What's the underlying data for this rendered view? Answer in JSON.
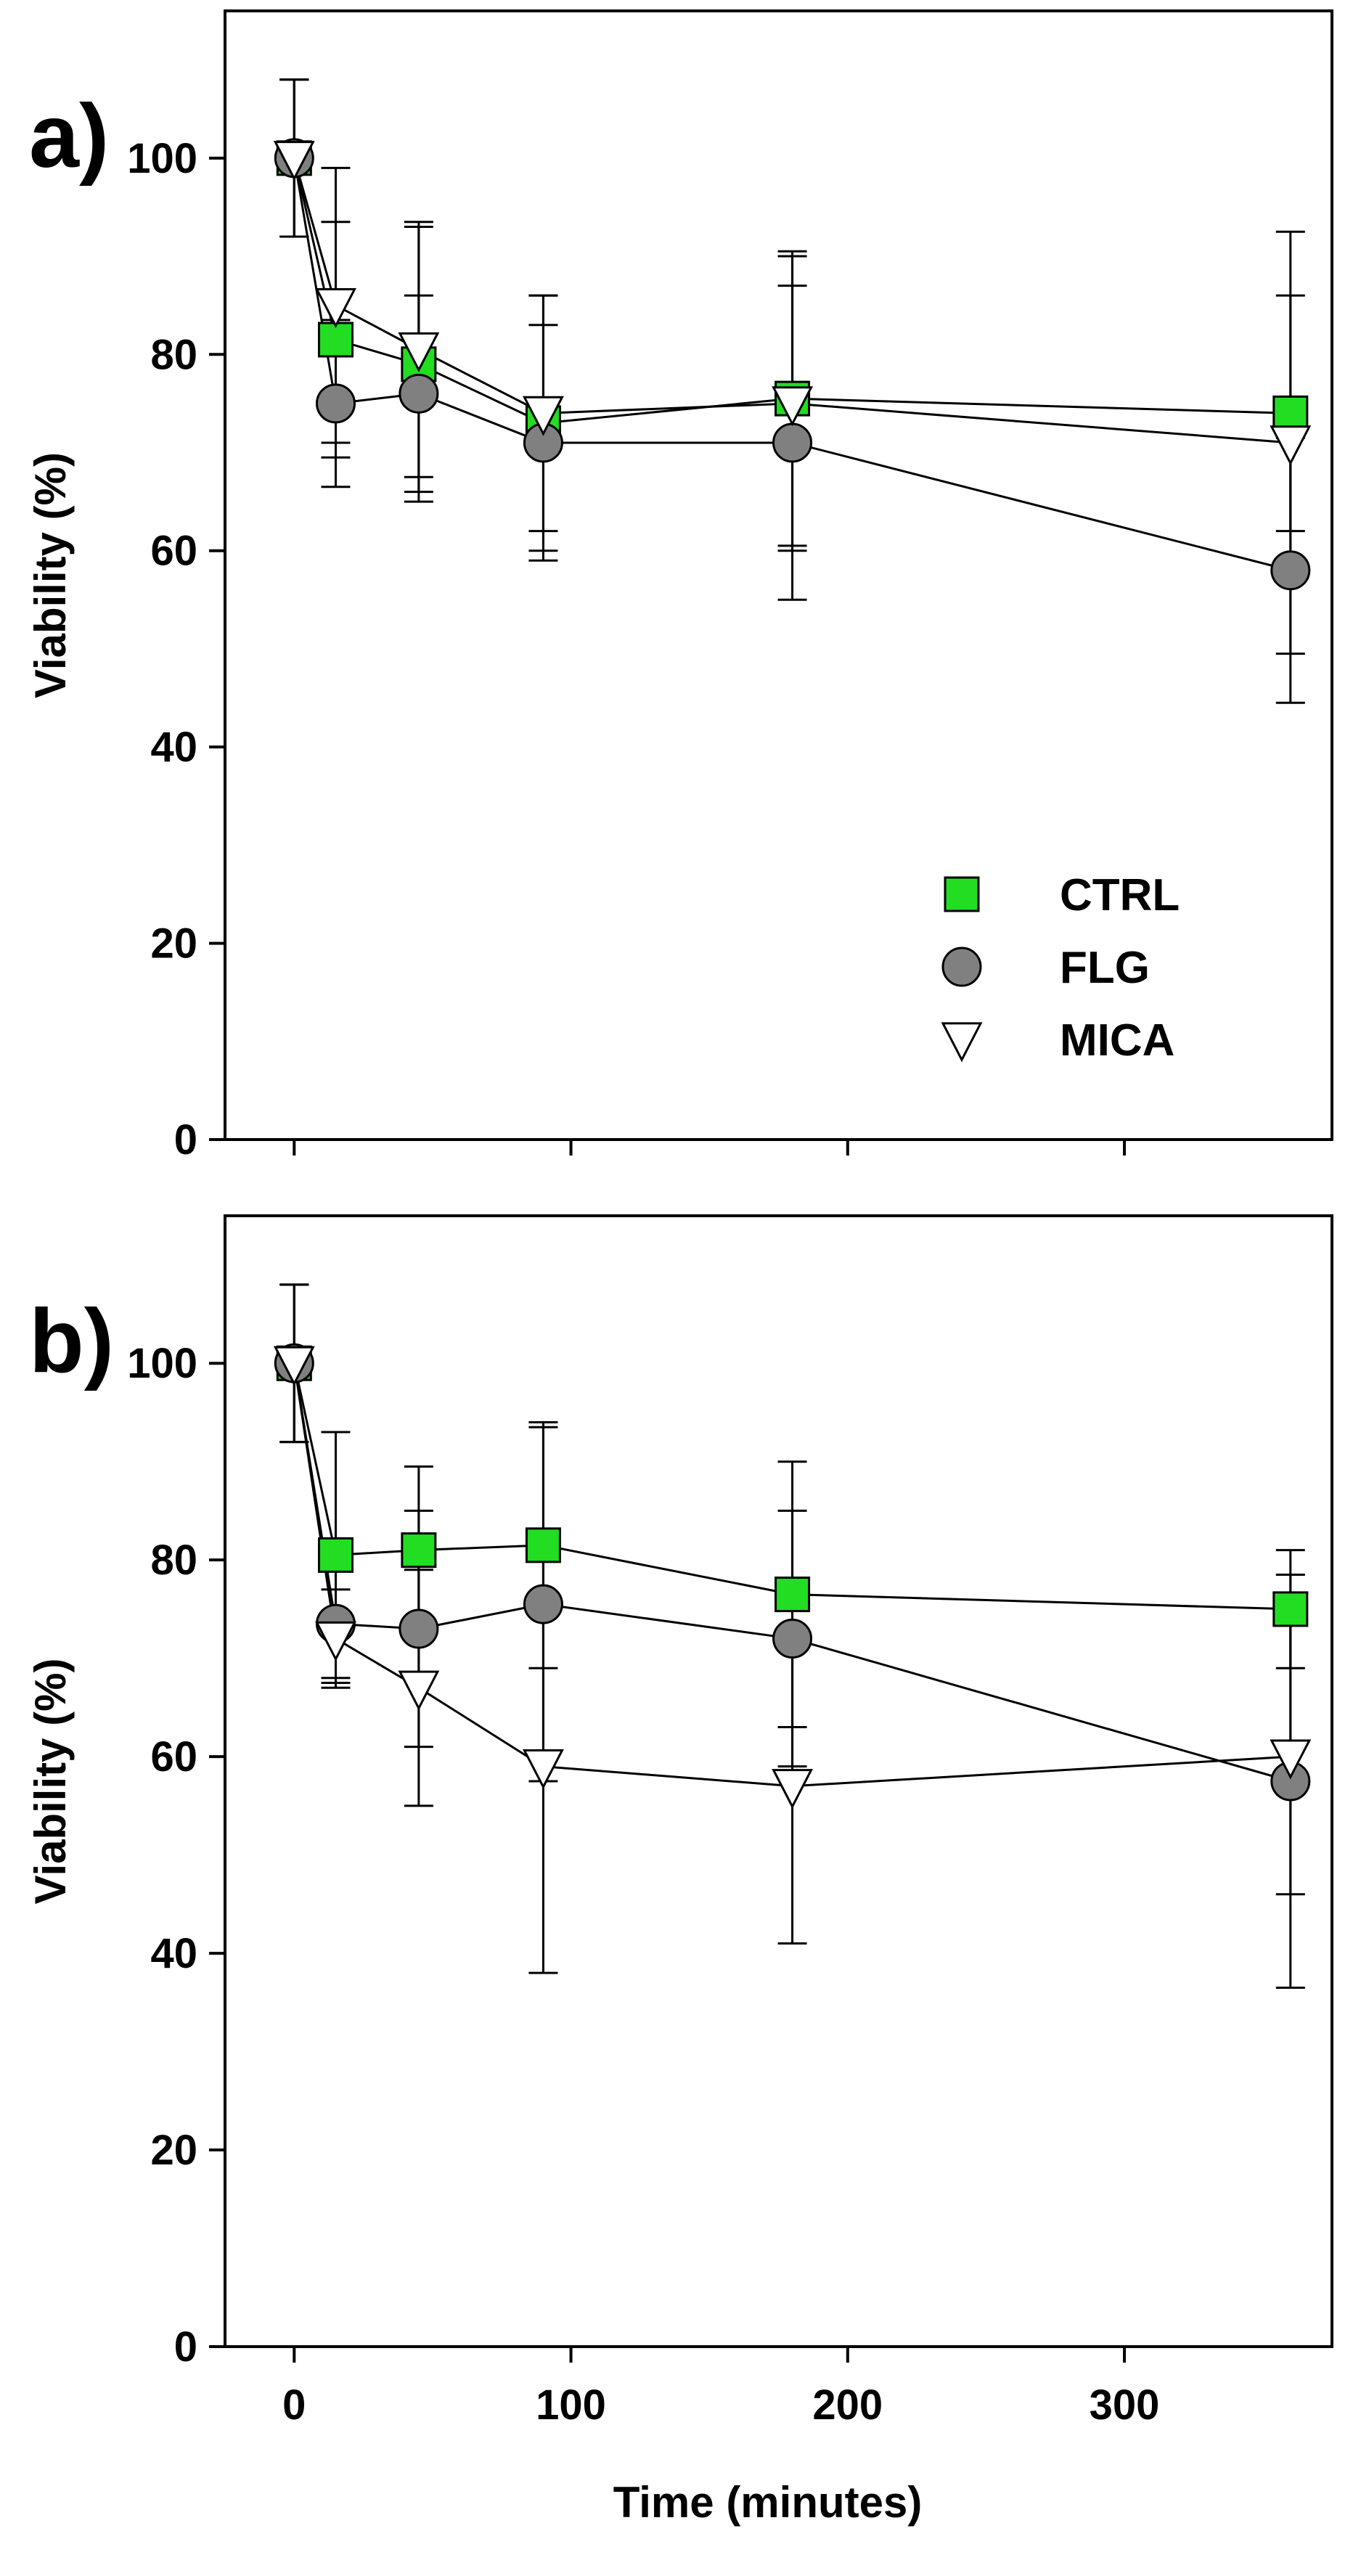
{
  "chart_data": [
    {
      "type": "scatter",
      "panel_label": "a)",
      "title": "",
      "xlabel": "",
      "ylabel": "Viability (%)",
      "xlim": [
        -25,
        375
      ],
      "ylim": [
        0,
        115
      ],
      "x_ticks": [
        "0",
        "100",
        "200",
        "300"
      ],
      "x_tick_values": [
        0,
        100,
        200,
        300
      ],
      "show_x_tick_labels": false,
      "y_ticks": [
        "0",
        "20",
        "40",
        "60",
        "80",
        "100"
      ],
      "y_tick_values": [
        0,
        20,
        40,
        60,
        80,
        100
      ],
      "legend": {
        "location": "lower-right",
        "entries": [
          "CTRL",
          "FLG",
          "MICA"
        ]
      },
      "x": [
        0,
        15,
        45,
        90,
        180,
        360
      ],
      "series": [
        {
          "name": "CTRL",
          "marker": "square",
          "color": "#22dd22",
          "values": [
            100,
            81.5,
            79,
            73,
            75.5,
            74
          ],
          "error": [
            8,
            12,
            14,
            13,
            15,
            12
          ]
        },
        {
          "name": "FLG",
          "marker": "circle",
          "color": "#808080",
          "values": [
            100,
            75,
            76,
            71,
            71,
            58
          ],
          "error": [
            8,
            8.5,
            10,
            12,
            16,
            13.5
          ]
        },
        {
          "name": "MICA",
          "marker": "triangle-down",
          "color": "#ffffff",
          "values": [
            100,
            85,
            80.5,
            74,
            75,
            71
          ],
          "error": [
            8,
            14,
            13,
            12,
            15,
            21.5
          ]
        }
      ]
    },
    {
      "type": "scatter",
      "panel_label": "b)",
      "title": "",
      "xlabel": "Time (minutes)",
      "ylabel": "Viability (%)",
      "xlim": [
        -25,
        375
      ],
      "ylim": [
        0,
        115
      ],
      "x_ticks": [
        "0",
        "100",
        "200",
        "300"
      ],
      "x_tick_values": [
        0,
        100,
        200,
        300
      ],
      "show_x_tick_labels": true,
      "y_ticks": [
        "0",
        "20",
        "40",
        "60",
        "80",
        "100"
      ],
      "y_tick_values": [
        0,
        20,
        40,
        60,
        80,
        100
      ],
      "x": [
        0,
        15,
        45,
        90,
        180,
        360
      ],
      "series": [
        {
          "name": "CTRL",
          "marker": "square",
          "color": "#22dd22",
          "values": [
            100,
            80.5,
            81,
            81.5,
            76.5,
            75
          ],
          "error": [
            8,
            12.5,
            8.5,
            12.5,
            13.5,
            6
          ]
        },
        {
          "name": "FLG",
          "marker": "circle",
          "color": "#808080",
          "values": [
            100,
            73.5,
            73,
            75.5,
            72,
            57.5
          ],
          "error": [
            8,
            6,
            12,
            18,
            13,
            21
          ]
        },
        {
          "name": "MICA",
          "marker": "triangle-down",
          "color": "#ffffff",
          "values": [
            100,
            72,
            67,
            59,
            57,
            60
          ],
          "error": [
            8,
            5,
            12,
            21,
            16,
            14
          ]
        }
      ]
    }
  ]
}
